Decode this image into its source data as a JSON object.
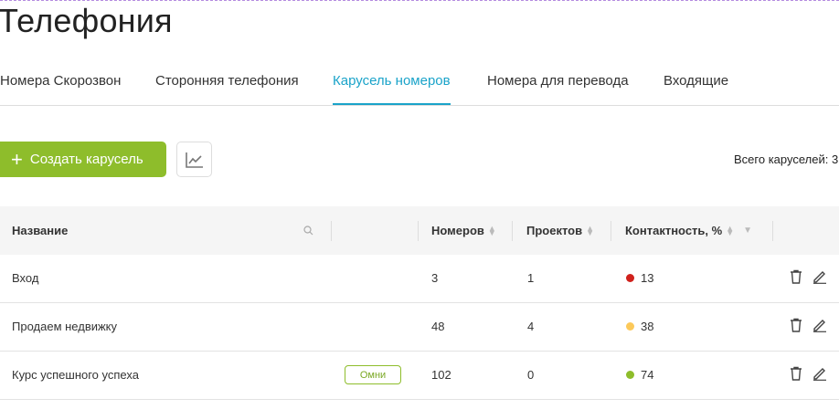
{
  "page": {
    "title": "Телефония"
  },
  "tabs": [
    {
      "label": "Номера Скорозвон",
      "active": false
    },
    {
      "label": "Сторонняя телефония",
      "active": false
    },
    {
      "label": "Карусель номеров",
      "active": true
    },
    {
      "label": "Номера для перевода",
      "active": false
    },
    {
      "label": "Входящие",
      "active": false
    }
  ],
  "toolbar": {
    "create_label": "Создать карусель",
    "create_icon": "plus-icon",
    "chart_icon": "line-chart-icon",
    "total": "Всего каруселей: 3"
  },
  "table": {
    "headers": {
      "name": "Название",
      "numbers": "Номеров",
      "projects": "Проектов",
      "contact": "Контактность, %"
    },
    "rows": [
      {
        "name": "Вход",
        "badge": "",
        "numbers": "3",
        "projects": "1",
        "contact": "13",
        "color": "#d0211c"
      },
      {
        "name": "Продаем недвижку",
        "badge": "",
        "numbers": "48",
        "projects": "4",
        "contact": "38",
        "color": "#fcc95a"
      },
      {
        "name": "Курс успешного успеха",
        "badge": "Омни",
        "numbers": "102",
        "projects": "0",
        "contact": "74",
        "color": "#8ebd2b"
      }
    ]
  },
  "colors": {
    "accent": "#8ebd2b",
    "tab_active": "#1aa3c9"
  }
}
